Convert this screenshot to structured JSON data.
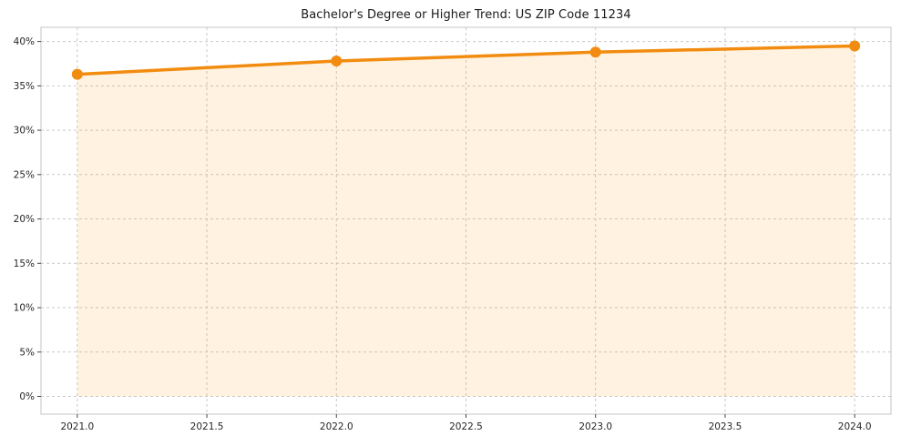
{
  "chart_data": {
    "type": "area",
    "title": "Bachelor's Degree or Higher Trend: US ZIP Code 11234",
    "x": [
      2021.0,
      2022.0,
      2023.0,
      2024.0
    ],
    "series": [
      {
        "name": "Bachelor's Degree or Higher (%)",
        "values": [
          36.3,
          37.8,
          38.8,
          39.5
        ]
      }
    ],
    "xlabel": "",
    "ylabel": "",
    "xlim": [
      2020.86,
      2024.14
    ],
    "ylim": [
      -2.0,
      41.6
    ],
    "baseline": 0,
    "xticks": [
      {
        "v": 2021.0,
        "label": "2021.0"
      },
      {
        "v": 2021.5,
        "label": "2021.5"
      },
      {
        "v": 2022.0,
        "label": "2022.0"
      },
      {
        "v": 2022.5,
        "label": "2022.5"
      },
      {
        "v": 2023.0,
        "label": "2023.0"
      },
      {
        "v": 2023.5,
        "label": "2023.5"
      },
      {
        "v": 2024.0,
        "label": "2024.0"
      }
    ],
    "yticks": [
      {
        "v": 0,
        "label": "0%"
      },
      {
        "v": 5,
        "label": "5%"
      },
      {
        "v": 10,
        "label": "10%"
      },
      {
        "v": 15,
        "label": "15%"
      },
      {
        "v": 20,
        "label": "20%"
      },
      {
        "v": 25,
        "label": "25%"
      },
      {
        "v": 30,
        "label": "30%"
      },
      {
        "v": 35,
        "label": "35%"
      },
      {
        "v": 40,
        "label": "40%"
      }
    ],
    "grid": "dashed",
    "legend": "none",
    "colors": {
      "line": "#f28c10",
      "marker": "#f28c10",
      "fill": "#ff9913",
      "fill_opacity": 0.13,
      "grid": "#c9c9c9",
      "border": "#c4c4c4",
      "tick": "#444444",
      "label": "#262626",
      "background": "#ffffff"
    }
  }
}
